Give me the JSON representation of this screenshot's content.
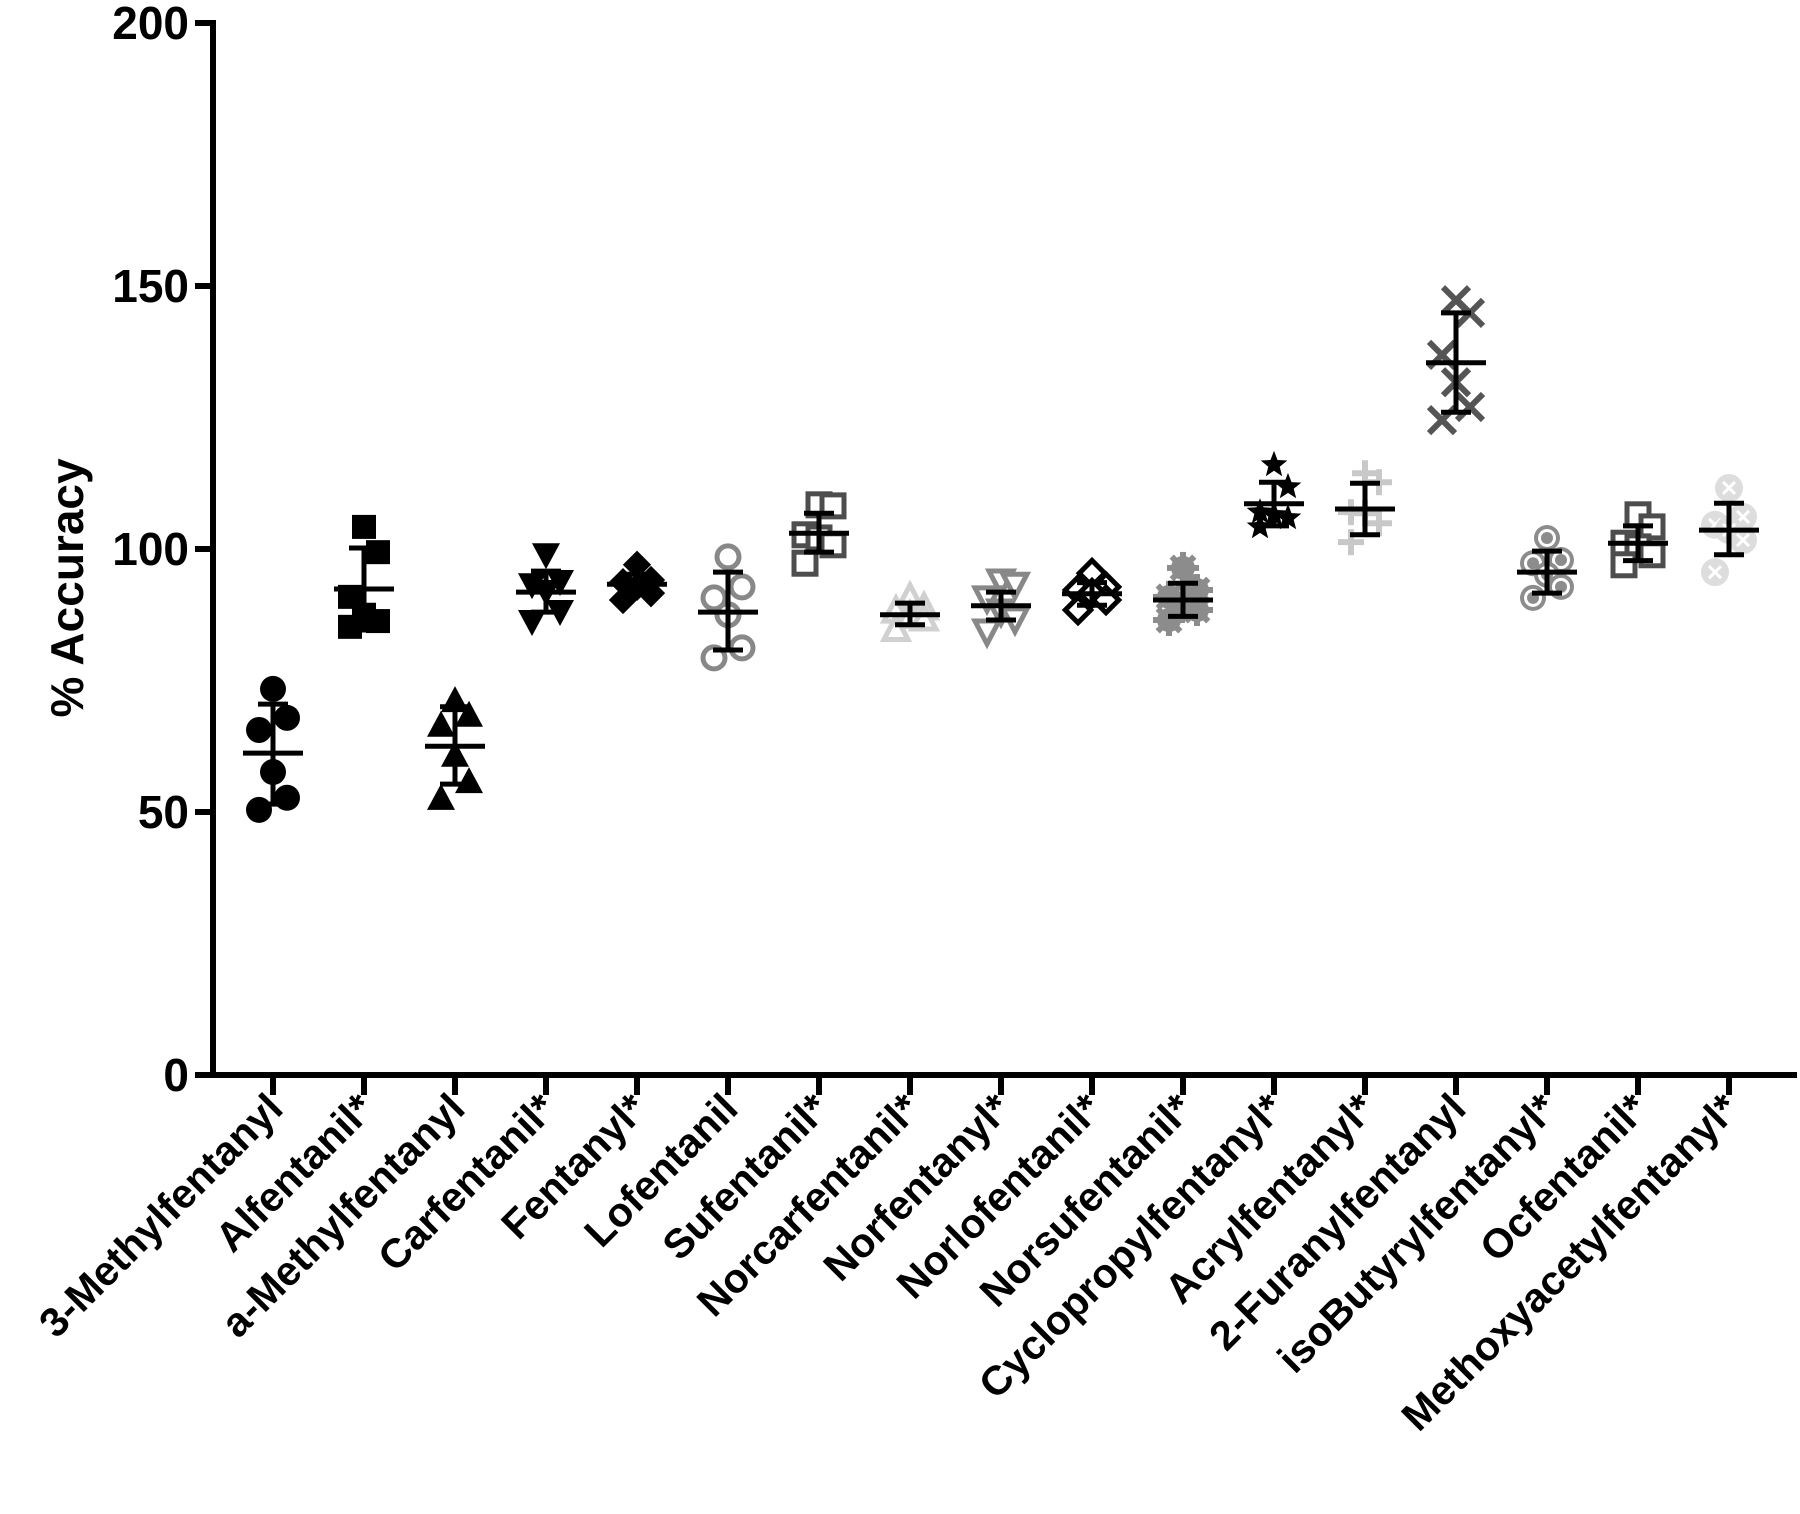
{
  "chart_data": {
    "type": "scatter",
    "subtype": "dot-plot with mean and SD error bars",
    "title": "",
    "xlabel": "",
    "ylabel": "% Accuracy",
    "ylim": [
      0,
      200
    ],
    "yticks": [
      0,
      50,
      100,
      150,
      200
    ],
    "grid": false,
    "legend": "none",
    "categories": [
      "3-Methylfentanyl",
      "Alfentanil*",
      "a-Methylfentanyl",
      "Carfentanil*",
      "Fentanyl*",
      "Lofentanil",
      "Sufentanil*",
      "Norcarfentanil*",
      "Norfentanyl*",
      "Norlofentanil*",
      "Norsufentanil*",
      "Cyclopropylfentanyl*",
      "Acrylfentanyl*",
      "2-Furanylfentanyl",
      "isoButyrylfentanyl*",
      "Ocfentanil*",
      "Methoxyacetylfentanyl*"
    ],
    "series": [
      {
        "name": "3-Methylfentanyl",
        "marker": "filled-circle",
        "color": "#000000",
        "values": [
          73.4,
          67.9,
          65.6,
          57.6,
          52.7,
          50.4
        ],
        "mean": 61.2,
        "sd_low": 51.5,
        "sd_high": 70.5
      },
      {
        "name": "Alfentanil*",
        "marker": "filled-square",
        "color": "#000000",
        "values": [
          104.2,
          99.4,
          90.9,
          87.5,
          86.3,
          85.2
        ],
        "mean": 92.4,
        "sd_low": 84.6,
        "sd_high": 100.2
      },
      {
        "name": "a-Methylfentanyl",
        "marker": "filled-triangle",
        "color": "#000000",
        "values": [
          70.9,
          68.1,
          66.2,
          60.5,
          55.5,
          52.3
        ],
        "mean": 62.5,
        "sd_low": 55.3,
        "sd_high": 70.0
      },
      {
        "name": "Carfentanil*",
        "marker": "filled-triangle-down",
        "color": "#000000",
        "values": [
          99.2,
          94.1,
          93.5,
          92.2,
          88.4,
          86.5
        ],
        "mean": 91.8,
        "sd_low": 88.0,
        "sd_high": 95.8
      },
      {
        "name": "Fentanyl*",
        "marker": "filled-diamond",
        "color": "#000000",
        "values": [
          97.0,
          94.1,
          93.7,
          92.8,
          91.6,
          90.3
        ],
        "mean": 93.3,
        "sd_low": 92.0,
        "sd_high": 95.2
      },
      {
        "name": "Lofentanil",
        "marker": "open-circle",
        "color": "#888888",
        "values": [
          98.5,
          92.8,
          90.7,
          87.5,
          81.2,
          79.3
        ],
        "mean": 88.0,
        "sd_low": 80.8,
        "sd_high": 95.6
      },
      {
        "name": "Sufentanil*",
        "marker": "open-square",
        "color": "#4d4d4d",
        "values": [
          108.4,
          108.2,
          102.7,
          102.1,
          100.8,
          97.3
        ],
        "mean": 103.0,
        "sd_low": 99.4,
        "sd_high": 106.8
      },
      {
        "name": "Norcarfentanil*",
        "marker": "open-triangle",
        "color": "#d0d0d0",
        "values": [
          90.5,
          88.6,
          88.0,
          87.0,
          86.5,
          84.5
        ],
        "mean": 87.5,
        "sd_low": 85.6,
        "sd_high": 89.7
      },
      {
        "name": "Norfentanyl*",
        "marker": "open-triangle-down",
        "color": "#888888",
        "values": [
          94.1,
          93.5,
          90.9,
          88.4,
          86.9,
          84.6
        ],
        "mean": 89.2,
        "sd_low": 86.5,
        "sd_high": 91.8
      },
      {
        "name": "Norlofentanil*",
        "marker": "open-diamond",
        "color": "#000000",
        "values": [
          95.4,
          92.8,
          92.2,
          91.6,
          90.3,
          88.4
        ],
        "mean": 91.5,
        "sd_low": 89.3,
        "sd_high": 93.6
      },
      {
        "name": "Norsufentanil*",
        "marker": "gear",
        "color": "#8c8c8c",
        "values": [
          96.4,
          92.2,
          90.9,
          89.7,
          88.4,
          86.5
        ],
        "mean": 90.3,
        "sd_low": 87.2,
        "sd_high": 93.5
      },
      {
        "name": "Cyclopropylfentanyl*",
        "marker": "star",
        "color": "#000000",
        "values": [
          116.0,
          111.8,
          107.0,
          106.5,
          105.9,
          104.2
        ],
        "mean": 108.6,
        "sd_low": 104.4,
        "sd_high": 112.7
      },
      {
        "name": "Acrylfentanyl*",
        "marker": "plus",
        "color": "#c8c8c8",
        "values": [
          114.4,
          112.7,
          107.0,
          106.8,
          104.9,
          101.3
        ],
        "mean": 107.6,
        "sd_low": 102.7,
        "sd_high": 112.5
      },
      {
        "name": "2-Furanylfentanyl",
        "marker": "cross",
        "color": "#555555",
        "values": [
          147.3,
          144.9,
          136.9,
          131.7,
          127.0,
          124.5
        ],
        "mean": 135.4,
        "sd_low": 126.0,
        "sd_high": 144.9
      },
      {
        "name": "isoButyrylfentanyl*",
        "marker": "double-circle",
        "color": "#8c8c8c",
        "values": [
          102.1,
          97.9,
          97.3,
          95.1,
          92.8,
          90.7
        ],
        "mean": 95.6,
        "sd_low": 91.6,
        "sd_high": 99.6
      },
      {
        "name": "Ocfentanil*",
        "marker": "open-square",
        "color": "#4d4d4d",
        "values": [
          106.5,
          104.2,
          101.1,
          100.4,
          98.9,
          97.0
        ],
        "mean": 101.1,
        "sd_low": 97.8,
        "sd_high": 104.4
      },
      {
        "name": "Methoxyacetylfentanyl*",
        "marker": "circle-x",
        "color": "#dddddd",
        "values": [
          111.6,
          106.1,
          104.6,
          103.6,
          101.7,
          95.6
        ],
        "mean": 103.6,
        "sd_low": 98.9,
        "sd_high": 108.7
      }
    ]
  }
}
